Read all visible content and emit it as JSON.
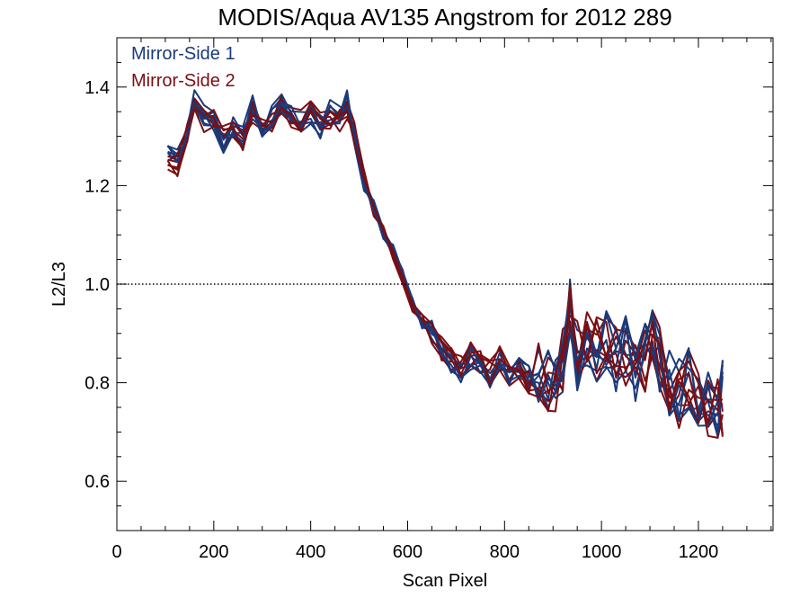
{
  "chart_data": {
    "type": "line",
    "title": "MODIS/Aqua AV135 Angstrom for 2012 289",
    "xlabel": "Scan Pixel",
    "ylabel": "L2/L3",
    "xlim": [
      0,
      1354
    ],
    "ylim": [
      0.5,
      1.5
    ],
    "x_ticks": [
      0,
      200,
      400,
      600,
      800,
      1000,
      1200
    ],
    "x_tick_labels": [
      "0",
      "200",
      "400",
      "600",
      "800",
      "1000",
      "1200"
    ],
    "y_ticks": [
      0.6,
      0.8,
      1.0,
      1.2,
      1.4
    ],
    "y_tick_labels": [
      "0.6",
      "0.8",
      "1.0",
      "1.2",
      "1.4"
    ],
    "reference_line": {
      "y": 1.0,
      "style": "dotted"
    },
    "grid": false,
    "legend_placement": "top-left",
    "x": [
      105,
      125,
      145,
      160,
      180,
      200,
      220,
      240,
      260,
      280,
      300,
      320,
      340,
      360,
      380,
      400,
      420,
      440,
      460,
      475,
      490,
      510,
      530,
      550,
      570,
      590,
      610,
      630,
      650,
      670,
      690,
      710,
      730,
      750,
      770,
      790,
      810,
      830,
      850,
      870,
      890,
      905,
      920,
      935,
      950,
      970,
      990,
      1010,
      1030,
      1050,
      1070,
      1090,
      1105,
      1120,
      1140,
      1160,
      1180,
      1200,
      1220,
      1240,
      1250
    ],
    "series": [
      {
        "name": "Mirror-Side 1",
        "color": "#1a3a7a",
        "values": [
          1.28,
          1.26,
          1.31,
          1.38,
          1.34,
          1.33,
          1.29,
          1.32,
          1.3,
          1.36,
          1.31,
          1.34,
          1.37,
          1.35,
          1.33,
          1.34,
          1.32,
          1.35,
          1.34,
          1.37,
          1.3,
          1.2,
          1.16,
          1.1,
          1.07,
          1.02,
          0.96,
          0.92,
          0.91,
          0.88,
          0.84,
          0.82,
          0.85,
          0.83,
          0.81,
          0.84,
          0.82,
          0.83,
          0.81,
          0.83,
          0.82,
          0.79,
          0.84,
          0.95,
          0.85,
          0.87,
          0.86,
          0.88,
          0.85,
          0.87,
          0.82,
          0.86,
          0.9,
          0.84,
          0.8,
          0.78,
          0.81,
          0.76,
          0.77,
          0.75,
          0.78
        ]
      },
      {
        "name": "Mirror-Side 2",
        "color": "#7a0e12",
        "values": [
          1.25,
          1.24,
          1.3,
          1.36,
          1.33,
          1.34,
          1.3,
          1.31,
          1.29,
          1.35,
          1.32,
          1.33,
          1.36,
          1.34,
          1.33,
          1.35,
          1.33,
          1.34,
          1.33,
          1.36,
          1.31,
          1.22,
          1.15,
          1.11,
          1.06,
          1.01,
          0.95,
          0.93,
          0.9,
          0.87,
          0.85,
          0.83,
          0.86,
          0.84,
          0.82,
          0.85,
          0.81,
          0.82,
          0.8,
          0.84,
          0.81,
          0.78,
          0.85,
          0.98,
          0.86,
          0.88,
          0.87,
          0.91,
          0.86,
          0.86,
          0.83,
          0.85,
          0.92,
          0.85,
          0.81,
          0.77,
          0.82,
          0.77,
          0.76,
          0.74,
          0.76
        ]
      }
    ]
  }
}
